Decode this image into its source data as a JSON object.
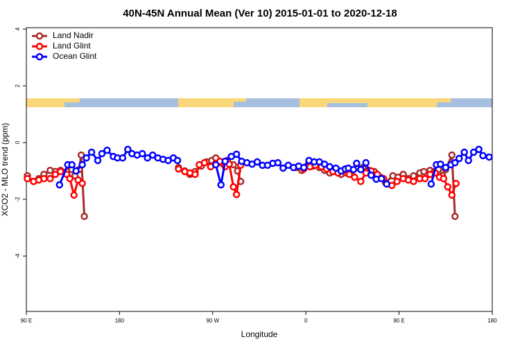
{
  "chart_data": {
    "type": "line",
    "title": "40N-45N Annual Mean (Ver 10)   2015-01-01 to 2020-12-18",
    "x_label": "Longitude",
    "y_label": "XCO2 - MLO trend (ppm)",
    "xlim": [
      90,
      540
    ],
    "xticks": [
      {
        "value": 90,
        "label": "90 E"
      },
      180,
      {
        "value": 270,
        "label": "90 W"
      },
      {
        "value": 360,
        "label": "0"
      },
      {
        "value": 450,
        "label": "90 E"
      },
      {
        "value": 540,
        "label": "180"
      }
    ],
    "ylim": [
      -5.95,
      4.05
    ],
    "yticks": [
      -4,
      -2,
      0,
      2,
      4
    ],
    "legend": "top-left",
    "series": [
      {
        "name": "Land Nadir",
        "color": "#a52a2a",
        "x": [
          91,
          97,
          102,
          107,
          113,
          118,
          123,
          129,
          134,
          137,
          141,
          143,
          146,
          null,
          237,
          243,
          248,
          253,
          259,
          264,
          269,
          273,
          279,
          284,
          290,
          294,
          297,
          null,
          351,
          356,
          362,
          367,
          373,
          378,
          383,
          389,
          394,
          399,
          405,
          410,
          415,
          421,
          426,
          432,
          437,
          444,
          449,
          454,
          459,
          464,
          470,
          474,
          480,
          484,
          488,
          492,
          495,
          501,
          504
        ],
        "values": [
          -1.17,
          -1.37,
          -1.27,
          -1.12,
          -0.98,
          -1.02,
          -0.98,
          -1.02,
          -0.95,
          -1.17,
          -0.95,
          -0.44,
          -2.6,
          null,
          -0.88,
          -1.0,
          -1.12,
          -1.02,
          -0.83,
          -0.68,
          -0.63,
          -0.54,
          -0.73,
          -0.63,
          -0.78,
          -1.0,
          -1.37,
          null,
          -0.88,
          -0.98,
          -0.78,
          -0.83,
          -0.88,
          -0.98,
          -1.07,
          -1.02,
          -1.12,
          -1.07,
          -0.98,
          -0.88,
          -0.88,
          -0.98,
          -1.02,
          -1.22,
          -1.41,
          -1.17,
          -1.22,
          -1.12,
          -1.27,
          -1.17,
          -1.07,
          -1.02,
          -0.98,
          -1.02,
          -0.95,
          -1.17,
          -0.95,
          -0.44,
          -2.6
        ]
      },
      {
        "name": "Land Glint",
        "color": "#ff0000",
        "x": [
          91,
          97,
          102,
          107,
          113,
          118,
          123,
          129,
          132,
          136,
          140,
          144,
          null,
          237,
          243,
          248,
          253,
          257,
          262,
          268,
          273,
          277,
          282,
          286,
          290,
          293,
          297,
          null,
          353,
          358,
          364,
          369,
          375,
          380,
          386,
          391,
          396,
          402,
          407,
          413,
          418,
          423,
          429,
          435,
          443,
          448,
          454,
          459,
          464,
          470,
          475,
          480,
          485,
          489,
          493,
          497,
          501,
          505
        ],
        "values": [
          -1.27,
          -1.37,
          -1.32,
          -1.27,
          -1.27,
          -1.12,
          -1.02,
          -1.12,
          -1.27,
          -1.85,
          -1.32,
          -1.44,
          null,
          -0.93,
          -1.02,
          -1.07,
          -1.12,
          -0.78,
          -0.71,
          -0.85,
          -0.73,
          -0.66,
          -0.85,
          -0.76,
          -1.56,
          -1.83,
          -0.8,
          null,
          -0.83,
          -0.93,
          -0.85,
          -0.8,
          -0.85,
          -0.93,
          -1.02,
          -1.07,
          -1.0,
          -1.12,
          -1.22,
          -1.37,
          -1.07,
          -1.0,
          -1.12,
          -1.27,
          -1.51,
          -1.37,
          -1.27,
          -1.32,
          -1.37,
          -1.27,
          -1.27,
          -1.12,
          -1.07,
          -1.22,
          -1.27,
          -1.56,
          -1.85,
          -1.44
        ]
      },
      {
        "name": "Ocean Glint",
        "color": "#0000ff",
        "x": [
          122,
          130,
          134,
          138,
          144,
          148,
          153,
          159,
          163,
          168,
          174,
          178,
          183,
          188,
          192,
          197,
          202,
          207,
          212,
          217,
          222,
          227,
          232,
          236,
          null,
          273,
          278,
          282,
          288,
          293,
          298,
          303,
          308,
          313,
          318,
          323,
          328,
          333,
          338,
          343,
          348,
          353,
          358,
          363,
          368,
          373,
          378,
          383,
          389,
          394,
          398,
          401,
          406,
          409,
          413,
          418,
          423,
          428,
          433,
          438,
          null,
          481,
          486,
          490,
          495,
          500,
          504,
          508,
          513,
          517,
          522,
          527,
          531,
          537
        ],
        "values": [
          -1.49,
          -0.78,
          -0.78,
          -1.0,
          -0.78,
          -0.54,
          -0.34,
          -0.63,
          -0.39,
          -0.27,
          -0.49,
          -0.54,
          -0.54,
          -0.24,
          -0.39,
          -0.44,
          -0.39,
          -0.54,
          -0.44,
          -0.54,
          -0.59,
          -0.63,
          -0.54,
          -0.63,
          null,
          -0.78,
          -1.49,
          -0.66,
          -0.49,
          -0.41,
          -0.66,
          -0.71,
          -0.76,
          -0.68,
          -0.8,
          -0.8,
          -0.73,
          -0.71,
          -0.9,
          -0.8,
          -0.88,
          -0.83,
          -0.88,
          -0.63,
          -0.68,
          -0.68,
          -0.76,
          -0.85,
          -0.9,
          -1.0,
          -0.93,
          -0.9,
          -0.95,
          -0.73,
          -0.95,
          -0.71,
          -1.15,
          -1.29,
          -1.27,
          -1.46,
          null,
          -1.46,
          -0.78,
          -0.76,
          -0.88,
          -0.78,
          -0.71,
          -0.56,
          -0.34,
          -0.63,
          -0.34,
          -0.24,
          -0.46,
          -0.51
        ]
      }
    ]
  }
}
